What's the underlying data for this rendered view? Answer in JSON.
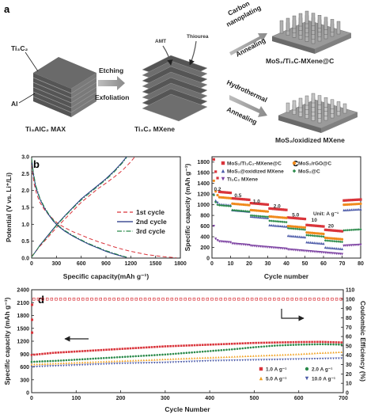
{
  "panel_a": {
    "label": "a",
    "ti3c2": "Ti₃C₂",
    "al": "Al",
    "max_caption": "Ti₃AlC₂ MAX",
    "etching": "Etching",
    "exfoliation": "Exfoliation",
    "mxene_caption": "Ti₃C₂ MXene",
    "amt": "AMT",
    "thiourea": "Thiourea",
    "carbon": "Carbon",
    "nanoplating": "nanoplating",
    "annealing": "Annealing",
    "hydrothermal": "Hydrothermal",
    "product1": "MoS₂/Ti₃C-MXene@C",
    "product2": "MoS₂/oxidized MXene"
  },
  "panel_b": {
    "label": "b",
    "x_ticks": [
      "0",
      "300",
      "600",
      "900",
      "1200",
      "1500",
      "1800"
    ],
    "y_ticks": [
      "0.0",
      "0.5",
      "1.0",
      "1.5",
      "2.0",
      "2.5",
      "3.0"
    ]
  },
  "panel_c": {
    "label": "c",
    "unit": "Unit: A g⁻¹",
    "x_ticks": [
      "0",
      "10",
      "20",
      "30",
      "40",
      "50",
      "60",
      "70",
      "80"
    ],
    "y_ticks": [
      "0",
      "200",
      "400",
      "600",
      "800",
      "1000",
      "1200",
      "1400",
      "1600",
      "1800"
    ]
  },
  "panel_d": {
    "label": "d",
    "x_ticks": [
      "0",
      "100",
      "200",
      "300",
      "400",
      "500",
      "600",
      "700"
    ],
    "y_left_ticks": [
      "0",
      "300",
      "600",
      "900",
      "1200",
      "1500",
      "1800",
      "2100",
      "2400"
    ],
    "y_right_ticks": [
      "0",
      "10",
      "20",
      "30",
      "40",
      "50",
      "60",
      "70",
      "80",
      "90",
      "100",
      "110"
    ]
  },
  "chart_data": [
    {
      "id": "b",
      "type": "line",
      "xlabel": "Specific capacity(mAh g⁻¹)",
      "ylabel": "Potential (V vs. Li⁺/Li)",
      "xlim": [
        0,
        1800
      ],
      "ylim": [
        0,
        3.0
      ],
      "series": [
        {
          "name": "1st cycle",
          "color": "#d9343b",
          "dash": "dash",
          "discharge": {
            "x": [
              0,
              10,
              30,
              60,
              100,
              150,
              200,
              260,
              320,
              400,
              500,
              600,
              700,
              800,
              900,
              1000,
              1100,
              1200,
              1300,
              1400,
              1500,
              1600,
              1700,
              1750
            ],
            "y": [
              2.95,
              2.6,
              2.2,
              1.9,
              1.65,
              1.45,
              1.3,
              1.15,
              1.02,
              0.9,
              0.78,
              0.68,
              0.58,
              0.49,
              0.41,
              0.33,
              0.26,
              0.2,
              0.15,
              0.1,
              0.07,
              0.04,
              0.02,
              0.01
            ]
          },
          "charge": {
            "x": [
              0,
              50,
              100,
              200,
              300,
              400,
              500,
              600,
              700,
              800,
              900,
              1000,
              1100,
              1200,
              1250
            ],
            "y": [
              0.05,
              0.2,
              0.35,
              0.62,
              0.9,
              1.15,
              1.4,
              1.65,
              1.85,
              2.05,
              2.22,
              2.4,
              2.6,
              2.85,
              3.0
            ]
          }
        },
        {
          "name": "2nd cycle",
          "color": "#1d2f80",
          "dash": "solid",
          "discharge": {
            "x": [
              0,
              20,
              50,
              100,
              150,
              200,
              260,
              320,
              400,
              500,
              600,
              700,
              800,
              900,
              1000,
              1100,
              1150
            ],
            "y": [
              2.95,
              2.5,
              2.1,
              1.75,
              1.5,
              1.3,
              1.1,
              0.95,
              0.8,
              0.65,
              0.52,
              0.4,
              0.3,
              0.2,
              0.12,
              0.05,
              0.02
            ]
          },
          "charge": {
            "x": [
              0,
              50,
              100,
              200,
              300,
              400,
              500,
              600,
              700,
              800,
              900,
              1000,
              1100,
              1150
            ],
            "y": [
              0.03,
              0.2,
              0.38,
              0.68,
              0.98,
              1.25,
              1.5,
              1.75,
              1.95,
              2.15,
              2.35,
              2.58,
              2.85,
              3.0
            ]
          }
        },
        {
          "name": "3rd cycle",
          "color": "#2a8a4a",
          "dash": "dashdot",
          "discharge": {
            "x": [
              0,
              20,
              50,
              100,
              150,
              200,
              260,
              320,
              400,
              500,
              600,
              700,
              800,
              900,
              1000,
              1100,
              1150
            ],
            "y": [
              2.95,
              2.55,
              2.15,
              1.78,
              1.53,
              1.33,
              1.13,
              0.97,
              0.82,
              0.67,
              0.54,
              0.42,
              0.32,
              0.22,
              0.14,
              0.06,
              0.03
            ]
          },
          "charge": {
            "x": [
              0,
              50,
              100,
              200,
              300,
              400,
              500,
              600,
              700,
              800,
              900,
              1000,
              1100,
              1150
            ],
            "y": [
              0.03,
              0.2,
              0.37,
              0.66,
              0.96,
              1.23,
              1.48,
              1.72,
              1.92,
              2.12,
              2.32,
              2.55,
              2.82,
              2.98
            ]
          }
        }
      ]
    },
    {
      "id": "c",
      "type": "scatter",
      "xlabel": "Cycle number",
      "ylabel": "Specific capacity (mAh g⁻¹)",
      "xlim": [
        0,
        80
      ],
      "ylim": [
        0,
        1900
      ],
      "rate_labels": [
        {
          "text": "0.2",
          "x": 3,
          "y": 1260
        },
        {
          "text": "0.5",
          "x": 14,
          "y": 1140
        },
        {
          "text": "1.0",
          "x": 24,
          "y": 1030
        },
        {
          "text": "2.0",
          "x": 35,
          "y": 940
        },
        {
          "text": "5.0",
          "x": 45,
          "y": 780
        },
        {
          "text": "10",
          "x": 55,
          "y": 680
        },
        {
          "text": "20",
          "x": 64,
          "y": 570
        }
      ],
      "series": [
        {
          "name": "MoS₂/Ti₃C₂-MXene@C",
          "color": "#d9343b",
          "marker": "square",
          "first": [
            1850,
            1620,
            1500
          ],
          "levels": [
            1250,
            1120,
            1030,
            930,
            760,
            620,
            530,
            1080
          ]
        },
        {
          "name": "MoS₂/rGO@C",
          "color": "#f08a1c",
          "marker": "circle",
          "first": [
            1450,
            1250,
            1180
          ],
          "levels": [
            1150,
            1020,
            900,
            780,
            600,
            480,
            380,
            1000
          ]
        },
        {
          "name": "MoS₂@oxidized MXene",
          "color": "#4b5aa8",
          "marker": "triangle",
          "first": [
            1200,
            1080,
            1050
          ],
          "levels": [
            1020,
            900,
            780,
            620,
            420,
            300,
            200,
            900
          ]
        },
        {
          "name": "MoS₂@C",
          "color": "#2a8a4a",
          "marker": "diamond",
          "first": [
            1180,
            1050,
            1000
          ],
          "levels": [
            1000,
            900,
            800,
            700,
            560,
            430,
            330,
            520
          ]
        },
        {
          "name": "Ti₃C₂ MXene",
          "color": "#7a3ea0",
          "marker": "triangle-down",
          "first": [
            600,
            360,
            330
          ],
          "levels": [
            320,
            270,
            230,
            200,
            160,
            130,
            100,
            230
          ]
        }
      ]
    },
    {
      "id": "d",
      "type": "scatter",
      "xlabel": "Cycle Number",
      "ylabel": "Specific capacity (mAh g⁻¹)",
      "y2label": "Coulombic Efficiency (%)",
      "xlim": [
        0,
        700
      ],
      "ylim": [
        0,
        2400
      ],
      "y2lim": [
        0,
        110
      ],
      "efficiency": {
        "value": 100,
        "color": "#d9343b"
      },
      "series": [
        {
          "name": "1.0 A g⁻¹",
          "color": "#d9343b",
          "marker": "square",
          "x": [
            0,
            50,
            100,
            150,
            200,
            250,
            300,
            350,
            400,
            450,
            500,
            550,
            600,
            650,
            700
          ],
          "y": [
            880,
            930,
            960,
            990,
            1020,
            1050,
            1080,
            1100,
            1120,
            1140,
            1160,
            1170,
            1180,
            1185,
            1170
          ]
        },
        {
          "name": "2.0 A g⁻¹",
          "color": "#2a8a4a",
          "marker": "circle",
          "x": [
            0,
            50,
            100,
            150,
            200,
            250,
            300,
            350,
            400,
            450,
            500,
            550,
            600,
            650,
            700
          ],
          "y": [
            720,
            740,
            770,
            800,
            830,
            860,
            890,
            930,
            970,
            1010,
            1060,
            1100,
            1120,
            1130,
            1120
          ]
        },
        {
          "name": "5.0 A g⁻¹",
          "color": "#f0a020",
          "marker": "triangle",
          "x": [
            0,
            50,
            100,
            150,
            200,
            250,
            300,
            350,
            400,
            450,
            500,
            550,
            600,
            650,
            700
          ],
          "y": [
            660,
            680,
            700,
            720,
            740,
            760,
            780,
            800,
            820,
            840,
            860,
            880,
            900,
            930,
            950
          ]
        },
        {
          "name": "10.0 A g⁻¹",
          "color": "#4b5aa8",
          "marker": "triangle-down",
          "x": [
            0,
            50,
            100,
            150,
            200,
            250,
            300,
            350,
            400,
            450,
            500,
            550,
            600,
            650,
            700
          ],
          "y": [
            600,
            620,
            640,
            660,
            680,
            690,
            700,
            720,
            740,
            750,
            760,
            770,
            780,
            790,
            800
          ]
        }
      ]
    }
  ]
}
